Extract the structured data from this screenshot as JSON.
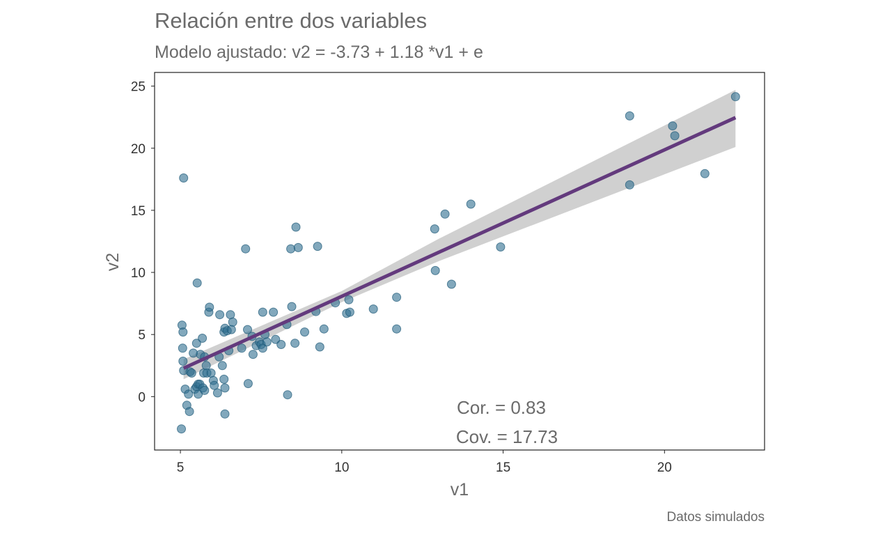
{
  "chart_data": {
    "type": "scatter",
    "title": "Relación entre dos variables",
    "subtitle": "Modelo ajustado: v2 =  -3.73  +  1.18 *v1 + e",
    "xlabel": "v1",
    "ylabel": "v2",
    "caption": "Datos simulados",
    "xlim": [
      4.2,
      23.1
    ],
    "ylim": [
      -4.3,
      26.1
    ],
    "xticks": [
      5,
      10,
      15,
      20
    ],
    "yticks": [
      0,
      5,
      10,
      15,
      20,
      25
    ],
    "grid": false,
    "annotations": [
      "Cor. =  0.83",
      "Cov. =  17.73"
    ],
    "fit": {
      "intercept": -3.73,
      "slope": 1.18,
      "x_range": [
        5.1,
        22.2
      ],
      "ci_lower": [
        [
          5.1,
          1.4
        ],
        [
          10,
          7.6
        ],
        [
          13,
          10.9
        ],
        [
          22.2,
          20.1
        ]
      ],
      "ci_upper": [
        [
          5.1,
          3.0
        ],
        [
          10,
          8.5
        ],
        [
          13,
          12.7
        ],
        [
          22.2,
          24.7
        ]
      ]
    },
    "colors": {
      "points": "#2f6e8f",
      "fit_line": "#633a7d",
      "ci_band": "#d0d0d0"
    },
    "points": [
      [
        5.05,
        5.75
      ],
      [
        5.08,
        5.2
      ],
      [
        5.07,
        3.9
      ],
      [
        5.08,
        2.85
      ],
      [
        5.1,
        2.1
      ],
      [
        5.03,
        -2.6
      ],
      [
        5.15,
        0.6
      ],
      [
        5.2,
        -0.7
      ],
      [
        5.25,
        0.2
      ],
      [
        5.28,
        -1.2
      ],
      [
        5.3,
        2.0
      ],
      [
        5.35,
        1.9
      ],
      [
        5.4,
        3.5
      ],
      [
        5.45,
        0.6
      ],
      [
        5.5,
        0.8
      ],
      [
        5.5,
        4.3
      ],
      [
        5.55,
        0.2
      ],
      [
        5.55,
        1.0
      ],
      [
        5.6,
        1.0
      ],
      [
        5.62,
        3.4
      ],
      [
        5.68,
        4.7
      ],
      [
        5.7,
        0.7
      ],
      [
        5.72,
        1.9
      ],
      [
        5.75,
        3.2
      ],
      [
        5.75,
        0.5
      ],
      [
        5.8,
        2.5
      ],
      [
        5.82,
        1.9
      ],
      [
        5.88,
        6.8
      ],
      [
        5.9,
        7.2
      ],
      [
        5.95,
        1.9
      ],
      [
        6.02,
        1.3
      ],
      [
        6.05,
        0.9
      ],
      [
        6.15,
        0.3
      ],
      [
        6.2,
        3.2
      ],
      [
        6.22,
        6.6
      ],
      [
        6.3,
        2.5
      ],
      [
        6.35,
        1.4
      ],
      [
        6.35,
        5.2
      ],
      [
        6.38,
        5.5
      ],
      [
        6.38,
        0.7
      ],
      [
        6.38,
        -1.4
      ],
      [
        6.45,
        5.3
      ],
      [
        6.5,
        3.7
      ],
      [
        6.55,
        6.6
      ],
      [
        6.58,
        5.4
      ],
      [
        6.62,
        6.0
      ],
      [
        6.9,
        3.9
      ],
      [
        7.02,
        11.9
      ],
      [
        7.08,
        5.4
      ],
      [
        7.1,
        1.05
      ],
      [
        7.22,
        4.85
      ],
      [
        7.25,
        3.4
      ],
      [
        7.35,
        4.1
      ],
      [
        7.45,
        4.4
      ],
      [
        7.5,
        4.2
      ],
      [
        7.55,
        6.8
      ],
      [
        7.55,
        3.9
      ],
      [
        7.62,
        5.0
      ],
      [
        7.68,
        4.4
      ],
      [
        7.88,
        6.8
      ],
      [
        7.95,
        4.6
      ],
      [
        8.12,
        4.2
      ],
      [
        8.3,
        5.8
      ],
      [
        8.32,
        0.15
      ],
      [
        8.45,
        7.25
      ],
      [
        8.42,
        11.9
      ],
      [
        8.55,
        4.3
      ],
      [
        8.58,
        13.65
      ],
      [
        8.65,
        12.0
      ],
      [
        8.85,
        5.2
      ],
      [
        9.2,
        6.85
      ],
      [
        9.25,
        12.1
      ],
      [
        9.32,
        4.0
      ],
      [
        9.45,
        5.45
      ],
      [
        9.8,
        7.55
      ],
      [
        10.15,
        6.7
      ],
      [
        10.22,
        7.8
      ],
      [
        10.25,
        6.8
      ],
      [
        10.98,
        7.05
      ],
      [
        11.7,
        5.45
      ],
      [
        11.7,
        8.0
      ],
      [
        12.88,
        13.5
      ],
      [
        12.9,
        10.15
      ],
      [
        13.2,
        14.7
      ],
      [
        13.4,
        9.05
      ],
      [
        14.0,
        15.5
      ],
      [
        14.92,
        12.05
      ],
      [
        5.1,
        17.6
      ],
      [
        5.52,
        9.15
      ],
      [
        18.92,
        22.6
      ],
      [
        18.92,
        17.05
      ],
      [
        20.25,
        21.8
      ],
      [
        20.32,
        21.0
      ],
      [
        21.25,
        17.95
      ],
      [
        22.2,
        24.15
      ]
    ]
  }
}
